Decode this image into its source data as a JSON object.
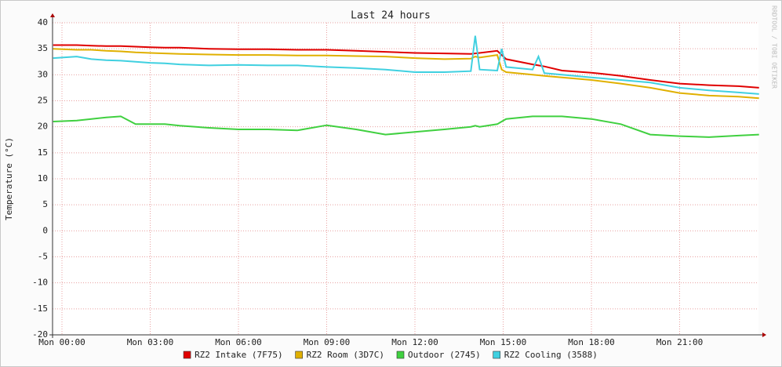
{
  "chart_data": {
    "type": "line",
    "title": "Last 24 hours",
    "y_label": "Temperature (°C)",
    "watermark": "RRDTOOL / TOBI OETIKER",
    "x": [
      -0.3,
      0.5,
      1,
      1.5,
      2,
      2.5,
      3,
      3.5,
      4,
      5,
      6,
      7,
      8,
      9,
      10,
      11,
      12,
      13,
      13.9,
      14.05,
      14.2,
      14.8,
      14.95,
      15.1,
      16,
      16.2,
      16.4,
      17,
      18,
      19,
      20,
      21,
      22,
      23,
      23.7
    ],
    "xlim": [
      -0.32,
      23.68
    ],
    "xticks": [
      {
        "value": 0,
        "label": "Mon 00:00"
      },
      {
        "value": 3,
        "label": "Mon 03:00"
      },
      {
        "value": 6,
        "label": "Mon 06:00"
      },
      {
        "value": 9,
        "label": "Mon 09:00"
      },
      {
        "value": 12,
        "label": "Mon 12:00"
      },
      {
        "value": 15,
        "label": "Mon 15:00"
      },
      {
        "value": 18,
        "label": "Mon 18:00"
      },
      {
        "value": 21,
        "label": "Mon 21:00"
      }
    ],
    "ylim": [
      -20,
      40
    ],
    "yticks": [
      -20,
      -15,
      -10,
      -5,
      0,
      5,
      10,
      15,
      20,
      25,
      30,
      35,
      40
    ],
    "grid": true,
    "series": [
      {
        "name": "RZ2 Intake (7F75)",
        "color": "#e00000",
        "values": [
          35.7,
          35.7,
          35.6,
          35.5,
          35.5,
          35.4,
          35.3,
          35.2,
          35.2,
          35,
          34.9,
          34.9,
          34.8,
          34.8,
          34.6,
          34.4,
          34.2,
          34.1,
          34,
          34.1,
          34.2,
          34.6,
          33.8,
          33,
          32,
          31.8,
          31.6,
          30.8,
          30.4,
          29.8,
          29,
          28.3,
          28,
          27.8,
          27.5
        ]
      },
      {
        "name": "RZ2 Room (3D7C)",
        "color": "#e0b000",
        "values": [
          35,
          34.8,
          34.8,
          34.6,
          34.5,
          34.3,
          34.2,
          34.1,
          34,
          33.9,
          33.8,
          33.8,
          33.7,
          33.7,
          33.6,
          33.5,
          33.2,
          33.0,
          33.1,
          33.5,
          33.3,
          33.8,
          31,
          30.5,
          30,
          29.9,
          29.8,
          29.5,
          29,
          28.3,
          27.5,
          26.5,
          26,
          25.8,
          25.5
        ]
      },
      {
        "name": "Outdoor (2745)",
        "color": "#40d040",
        "values": [
          21,
          21.2,
          21.5,
          21.8,
          22,
          20.5,
          20.5,
          20.5,
          20.2,
          19.8,
          19.5,
          19.5,
          19.3,
          20.3,
          19.5,
          18.5,
          19,
          19.5,
          20,
          20.2,
          20,
          20.5,
          21,
          21.5,
          22,
          22,
          22,
          22,
          21.5,
          20.5,
          18.5,
          18.2,
          18,
          18.3,
          18.5
        ]
      },
      {
        "name": "RZ2 Cooling (3588)",
        "color": "#40d0e0",
        "values": [
          33.2,
          33.5,
          33.0,
          32.8,
          32.7,
          32.5,
          32.3,
          32.2,
          32,
          31.8,
          31.9,
          31.8,
          31.8,
          31.5,
          31.3,
          31,
          30.5,
          30.5,
          30.7,
          37.5,
          31,
          30.8,
          35,
          31.5,
          31,
          33.5,
          30.3,
          30,
          29.5,
          29,
          28.5,
          27.5,
          27,
          26.6,
          26.3
        ]
      }
    ]
  }
}
